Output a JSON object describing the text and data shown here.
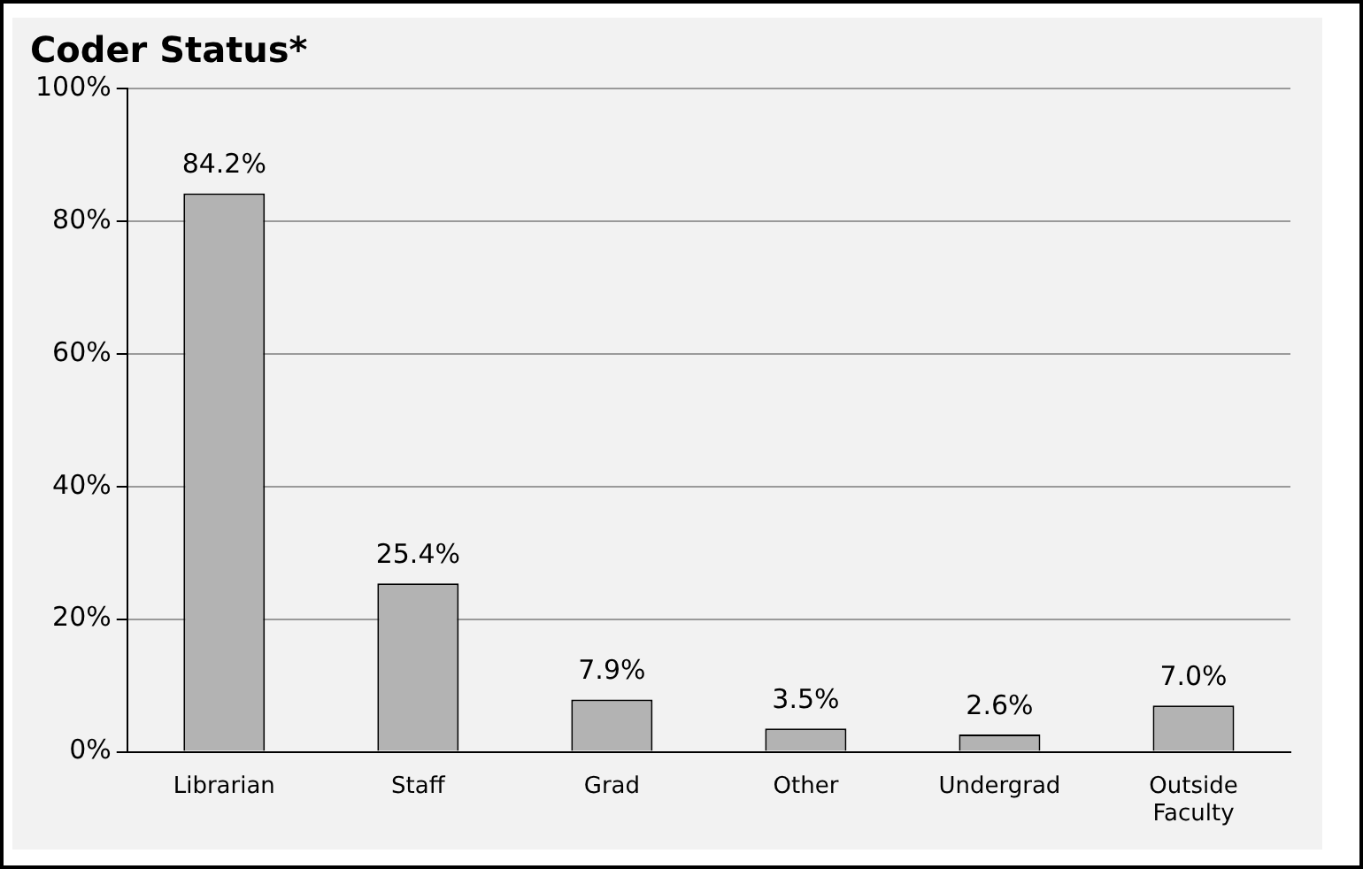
{
  "chart_data": {
    "type": "bar",
    "title": "Coder Status*",
    "categories": [
      "Librarian",
      "Staff",
      "Grad",
      "Other",
      "Undergrad",
      "Outside Faculty"
    ],
    "values": [
      84.2,
      25.4,
      7.9,
      3.5,
      2.6,
      7.0
    ],
    "value_labels": [
      "84.2%",
      "25.4%",
      "7.9%",
      "3.5%",
      "2.6%",
      "7.0%"
    ],
    "color": "#b3b3b3",
    "ylim": [
      0,
      100
    ],
    "yticks": [
      {
        "value": 0,
        "label": "0%"
      },
      {
        "value": 20,
        "label": "20%"
      },
      {
        "value": 40,
        "label": "40%"
      },
      {
        "value": 60,
        "label": "60%"
      },
      {
        "value": 80,
        "label": "80%"
      },
      {
        "value": 100,
        "label": "100%"
      }
    ],
    "grid": "y",
    "legend": false
  }
}
